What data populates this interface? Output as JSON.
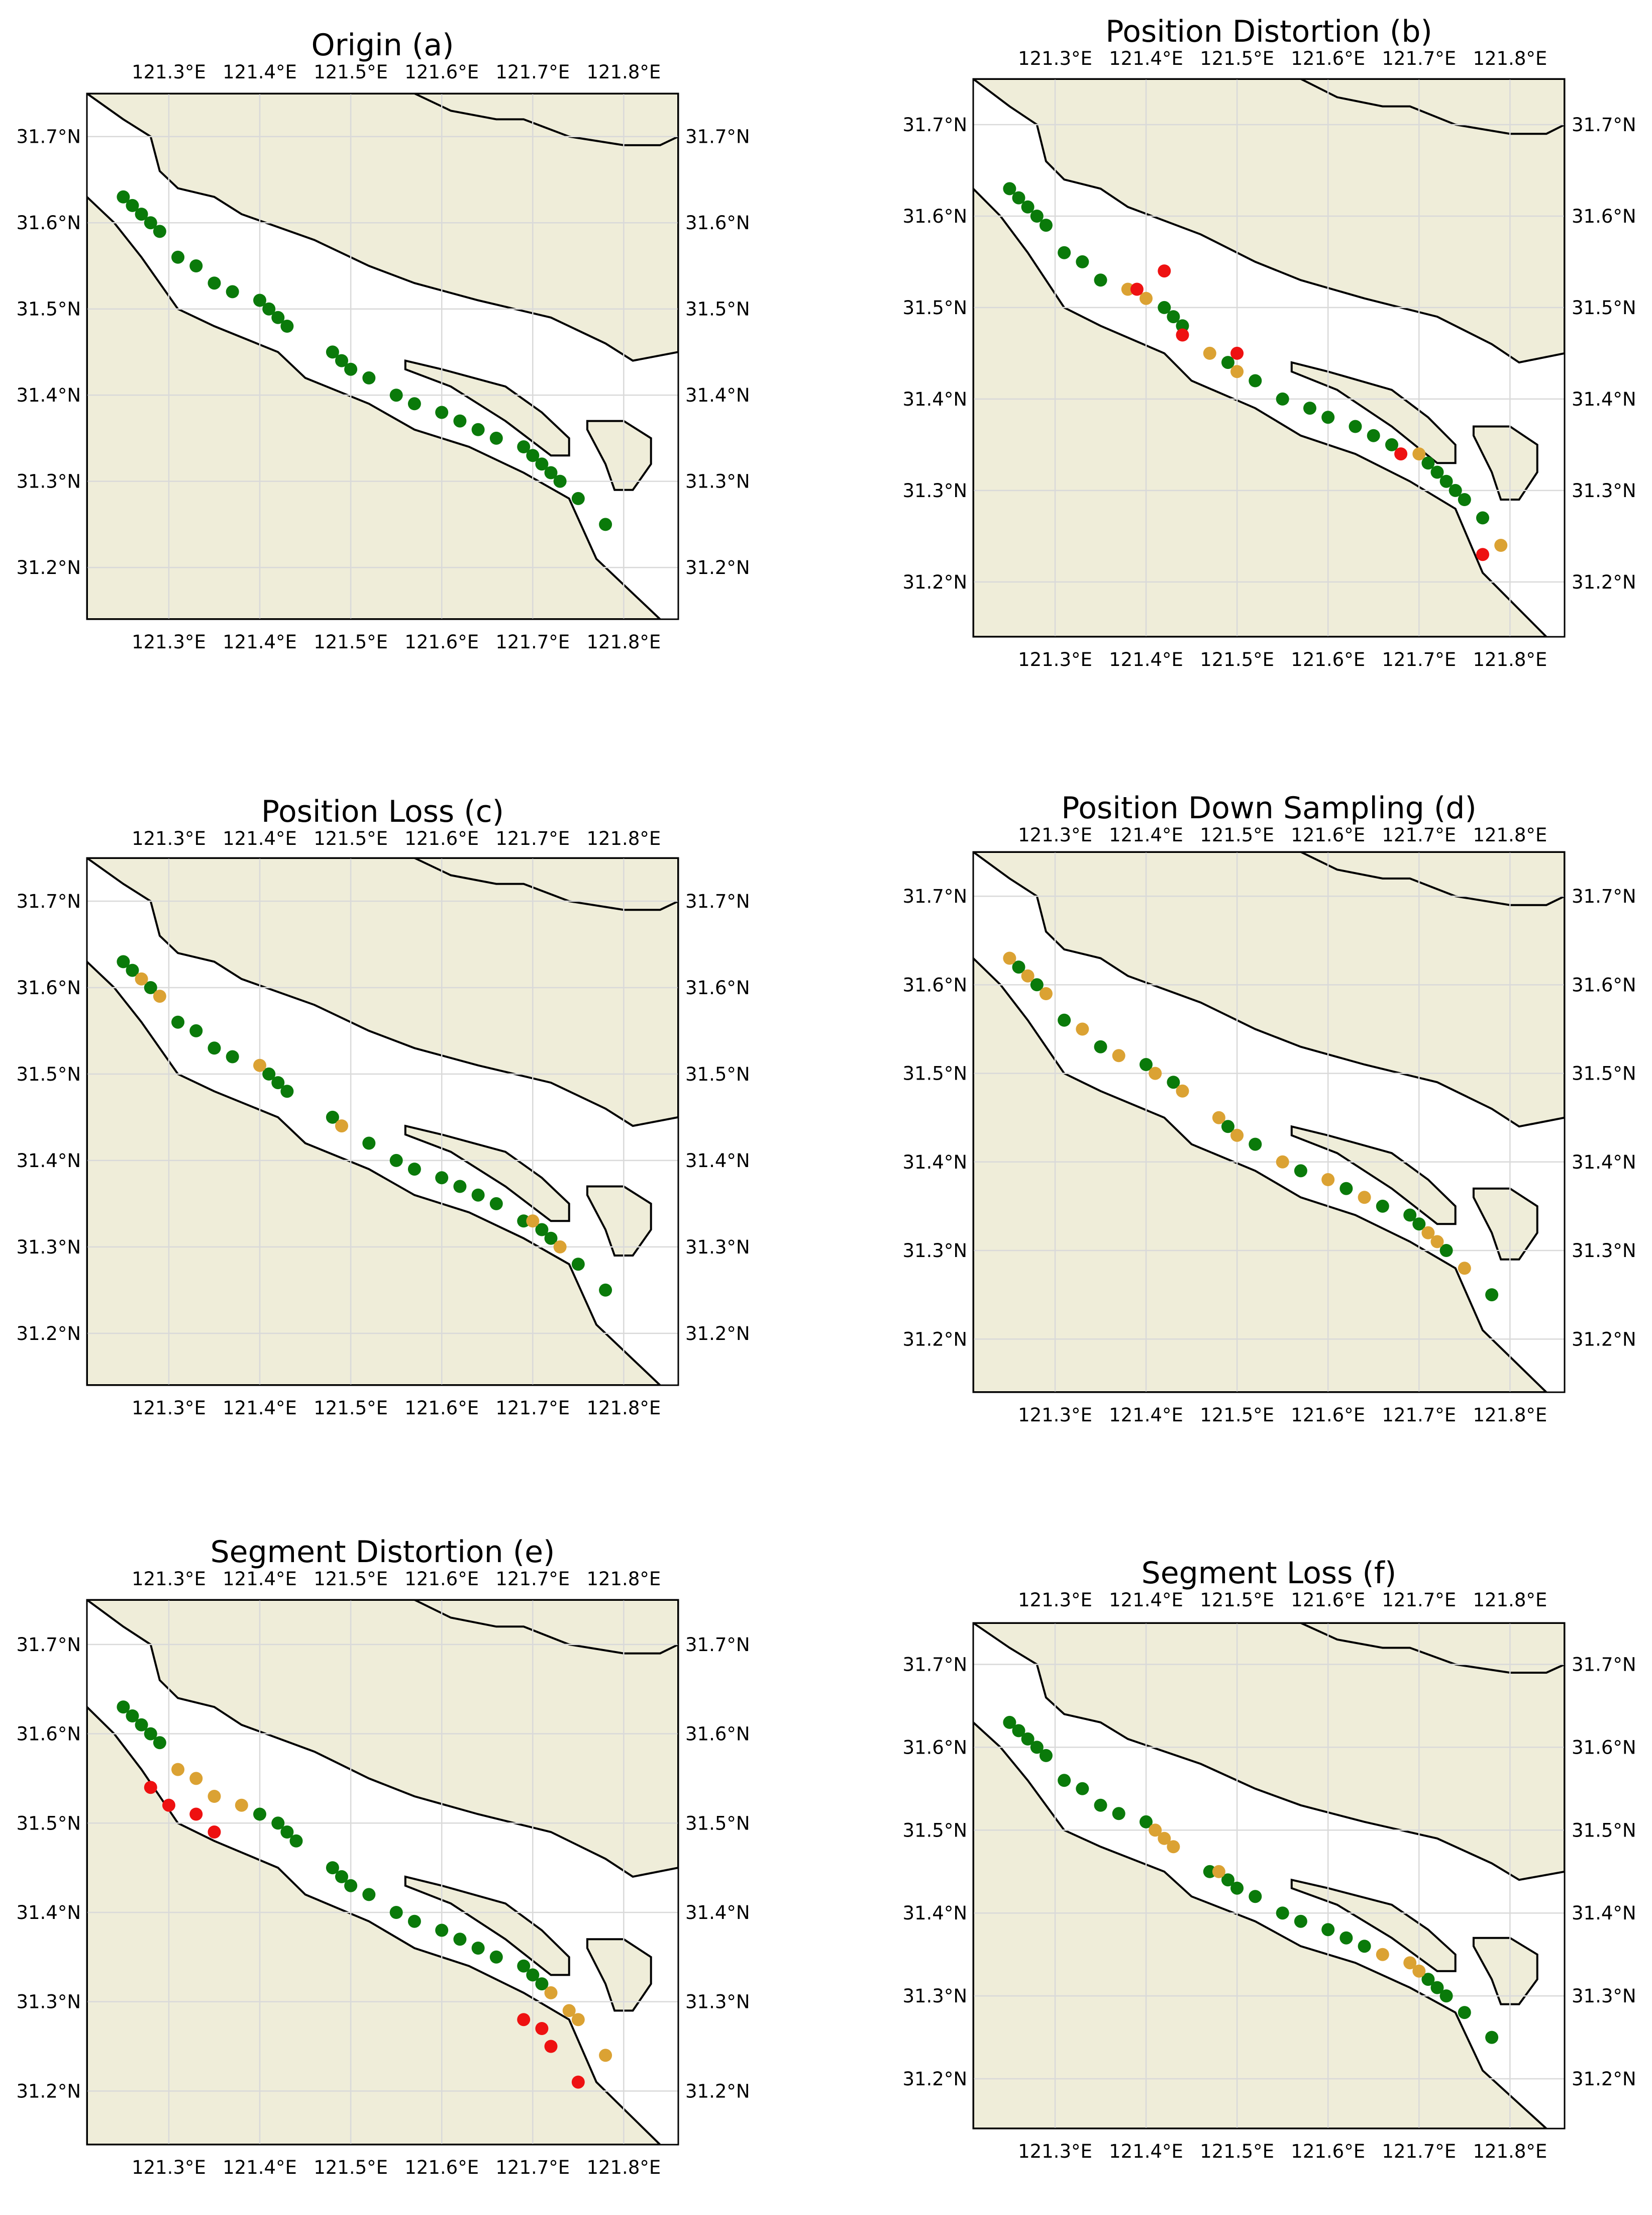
{
  "colors": {
    "land": "#efedd9",
    "water": "#ffffff",
    "coast": "#000000",
    "grid": "#d9d9d9",
    "original_point": "#0a7a0a",
    "modified_point": "#dba233",
    "distorted_point": "#ee1111"
  },
  "panels": [
    {
      "title": "Origin (a)",
      "lon_ticks": [
        "121.3°E",
        "121.4°E",
        "121.5°E",
        "121.6°E",
        "121.7°E",
        "121.8°E"
      ],
      "lat_ticks": [
        "31.7°N",
        "31.6°N",
        "31.5°N",
        "31.4°N",
        "31.3°N",
        "31.2°N"
      ],
      "points": {
        "green": [
          [
            121.25,
            31.63
          ],
          [
            121.26,
            31.62
          ],
          [
            121.27,
            31.61
          ],
          [
            121.28,
            31.6
          ],
          [
            121.29,
            31.59
          ],
          [
            121.31,
            31.56
          ],
          [
            121.33,
            31.55
          ],
          [
            121.35,
            31.53
          ],
          [
            121.37,
            31.52
          ],
          [
            121.4,
            31.51
          ],
          [
            121.41,
            31.5
          ],
          [
            121.42,
            31.49
          ],
          [
            121.43,
            31.48
          ],
          [
            121.48,
            31.45
          ],
          [
            121.49,
            31.44
          ],
          [
            121.5,
            31.43
          ],
          [
            121.52,
            31.42
          ],
          [
            121.55,
            31.4
          ],
          [
            121.57,
            31.39
          ],
          [
            121.6,
            31.38
          ],
          [
            121.62,
            31.37
          ],
          [
            121.64,
            31.36
          ],
          [
            121.66,
            31.35
          ],
          [
            121.69,
            31.34
          ],
          [
            121.7,
            31.33
          ],
          [
            121.71,
            31.32
          ],
          [
            121.72,
            31.31
          ],
          [
            121.73,
            31.3
          ],
          [
            121.75,
            31.28
          ],
          [
            121.78,
            31.25
          ]
        ],
        "orange": [],
        "red": []
      }
    },
    {
      "title": "Position Distortion (b)",
      "lon_ticks": [
        "121.3°E",
        "121.4°E",
        "121.5°E",
        "121.6°E",
        "121.7°E",
        "121.8°E"
      ],
      "lat_ticks": [
        "31.7°N",
        "31.6°N",
        "31.5°N",
        "31.4°N",
        "31.3°N",
        "31.2°N"
      ],
      "points": {
        "green": [
          [
            121.25,
            31.63
          ],
          [
            121.26,
            31.62
          ],
          [
            121.27,
            31.61
          ],
          [
            121.28,
            31.6
          ],
          [
            121.29,
            31.59
          ],
          [
            121.31,
            31.56
          ],
          [
            121.33,
            31.55
          ],
          [
            121.35,
            31.53
          ],
          [
            121.42,
            31.5
          ],
          [
            121.43,
            31.49
          ],
          [
            121.44,
            31.48
          ],
          [
            121.49,
            31.44
          ],
          [
            121.52,
            31.42
          ],
          [
            121.55,
            31.4
          ],
          [
            121.58,
            31.39
          ],
          [
            121.6,
            31.38
          ],
          [
            121.63,
            31.37
          ],
          [
            121.65,
            31.36
          ],
          [
            121.67,
            31.35
          ],
          [
            121.71,
            31.33
          ],
          [
            121.72,
            31.32
          ],
          [
            121.73,
            31.31
          ],
          [
            121.74,
            31.3
          ],
          [
            121.75,
            31.29
          ],
          [
            121.77,
            31.27
          ]
        ],
        "orange": [
          [
            121.38,
            31.52
          ],
          [
            121.4,
            31.51
          ],
          [
            121.47,
            31.45
          ],
          [
            121.5,
            31.43
          ],
          [
            121.7,
            31.34
          ],
          [
            121.79,
            31.24
          ]
        ],
        "red": [
          [
            121.39,
            31.52
          ],
          [
            121.42,
            31.54
          ],
          [
            121.44,
            31.47
          ],
          [
            121.5,
            31.45
          ],
          [
            121.68,
            31.34
          ],
          [
            121.77,
            31.23
          ]
        ]
      }
    },
    {
      "title": "Position Loss (c)",
      "lon_ticks": [
        "121.3°E",
        "121.4°E",
        "121.5°E",
        "121.6°E",
        "121.7°E",
        "121.8°E"
      ],
      "lat_ticks": [
        "31.7°N",
        "31.6°N",
        "31.5°N",
        "31.4°N",
        "31.3°N",
        "31.2°N"
      ],
      "points": {
        "green": [
          [
            121.25,
            31.63
          ],
          [
            121.26,
            31.62
          ],
          [
            121.28,
            31.6
          ],
          [
            121.31,
            31.56
          ],
          [
            121.33,
            31.55
          ],
          [
            121.35,
            31.53
          ],
          [
            121.37,
            31.52
          ],
          [
            121.41,
            31.5
          ],
          [
            121.42,
            31.49
          ],
          [
            121.43,
            31.48
          ],
          [
            121.48,
            31.45
          ],
          [
            121.52,
            31.42
          ],
          [
            121.55,
            31.4
          ],
          [
            121.57,
            31.39
          ],
          [
            121.6,
            31.38
          ],
          [
            121.62,
            31.37
          ],
          [
            121.64,
            31.36
          ],
          [
            121.66,
            31.35
          ],
          [
            121.69,
            31.33
          ],
          [
            121.71,
            31.32
          ],
          [
            121.72,
            31.31
          ],
          [
            121.75,
            31.28
          ],
          [
            121.78,
            31.25
          ]
        ],
        "orange": [
          [
            121.27,
            31.61
          ],
          [
            121.29,
            31.59
          ],
          [
            121.4,
            31.51
          ],
          [
            121.49,
            31.44
          ],
          [
            121.7,
            31.33
          ],
          [
            121.73,
            31.3
          ]
        ],
        "red": []
      }
    },
    {
      "title": "Position Down Sampling (d)",
      "lon_ticks": [
        "121.3°E",
        "121.4°E",
        "121.5°E",
        "121.6°E",
        "121.7°E",
        "121.8°E"
      ],
      "lat_ticks": [
        "31.7°N",
        "31.6°N",
        "31.5°N",
        "31.4°N",
        "31.3°N",
        "31.2°N"
      ],
      "points": {
        "green": [
          [
            121.26,
            31.62
          ],
          [
            121.28,
            31.6
          ],
          [
            121.31,
            31.56
          ],
          [
            121.35,
            31.53
          ],
          [
            121.4,
            31.51
          ],
          [
            121.43,
            31.49
          ],
          [
            121.49,
            31.44
          ],
          [
            121.52,
            31.42
          ],
          [
            121.57,
            31.39
          ],
          [
            121.62,
            31.37
          ],
          [
            121.66,
            31.35
          ],
          [
            121.69,
            31.34
          ],
          [
            121.7,
            31.33
          ],
          [
            121.73,
            31.3
          ],
          [
            121.78,
            31.25
          ]
        ],
        "orange": [
          [
            121.25,
            31.63
          ],
          [
            121.27,
            31.61
          ],
          [
            121.29,
            31.59
          ],
          [
            121.33,
            31.55
          ],
          [
            121.37,
            31.52
          ],
          [
            121.41,
            31.5
          ],
          [
            121.44,
            31.48
          ],
          [
            121.48,
            31.45
          ],
          [
            121.5,
            31.43
          ],
          [
            121.55,
            31.4
          ],
          [
            121.6,
            31.38
          ],
          [
            121.64,
            31.36
          ],
          [
            121.71,
            31.32
          ],
          [
            121.72,
            31.31
          ],
          [
            121.75,
            31.28
          ]
        ],
        "red": []
      }
    },
    {
      "title": "Segment Distortion (e)",
      "lon_ticks": [
        "121.3°E",
        "121.4°E",
        "121.5°E",
        "121.6°E",
        "121.7°E",
        "121.8°E"
      ],
      "lat_ticks": [
        "31.7°N",
        "31.6°N",
        "31.5°N",
        "31.4°N",
        "31.3°N",
        "31.2°N"
      ],
      "points": {
        "green": [
          [
            121.25,
            31.63
          ],
          [
            121.26,
            31.62
          ],
          [
            121.27,
            31.61
          ],
          [
            121.28,
            31.6
          ],
          [
            121.29,
            31.59
          ],
          [
            121.4,
            31.51
          ],
          [
            121.42,
            31.5
          ],
          [
            121.43,
            31.49
          ],
          [
            121.44,
            31.48
          ],
          [
            121.48,
            31.45
          ],
          [
            121.49,
            31.44
          ],
          [
            121.5,
            31.43
          ],
          [
            121.52,
            31.42
          ],
          [
            121.55,
            31.4
          ],
          [
            121.57,
            31.39
          ],
          [
            121.6,
            31.38
          ],
          [
            121.62,
            31.37
          ],
          [
            121.64,
            31.36
          ],
          [
            121.66,
            31.35
          ],
          [
            121.69,
            31.34
          ],
          [
            121.7,
            31.33
          ],
          [
            121.71,
            31.32
          ]
        ],
        "orange": [
          [
            121.31,
            31.56
          ],
          [
            121.33,
            31.55
          ],
          [
            121.35,
            31.53
          ],
          [
            121.38,
            31.52
          ],
          [
            121.72,
            31.31
          ],
          [
            121.74,
            31.29
          ],
          [
            121.75,
            31.28
          ],
          [
            121.78,
            31.24
          ]
        ],
        "red": [
          [
            121.28,
            31.54
          ],
          [
            121.3,
            31.52
          ],
          [
            121.33,
            31.51
          ],
          [
            121.35,
            31.49
          ],
          [
            121.69,
            31.28
          ],
          [
            121.71,
            31.27
          ],
          [
            121.72,
            31.25
          ],
          [
            121.75,
            31.21
          ]
        ]
      }
    },
    {
      "title": "Segment Loss (f)",
      "lon_ticks": [
        "121.3°E",
        "121.4°E",
        "121.5°E",
        "121.6°E",
        "121.7°E",
        "121.8°E"
      ],
      "lat_ticks": [
        "31.7°N",
        "31.6°N",
        "31.5°N",
        "31.4°N",
        "31.3°N",
        "31.2°N"
      ],
      "points": {
        "green": [
          [
            121.25,
            31.63
          ],
          [
            121.26,
            31.62
          ],
          [
            121.27,
            31.61
          ],
          [
            121.28,
            31.6
          ],
          [
            121.29,
            31.59
          ],
          [
            121.31,
            31.56
          ],
          [
            121.33,
            31.55
          ],
          [
            121.35,
            31.53
          ],
          [
            121.37,
            31.52
          ],
          [
            121.4,
            31.51
          ],
          [
            121.47,
            31.45
          ],
          [
            121.49,
            31.44
          ],
          [
            121.5,
            31.43
          ],
          [
            121.52,
            31.42
          ],
          [
            121.55,
            31.4
          ],
          [
            121.57,
            31.39
          ],
          [
            121.6,
            31.38
          ],
          [
            121.62,
            31.37
          ],
          [
            121.64,
            31.36
          ],
          [
            121.71,
            31.32
          ],
          [
            121.72,
            31.31
          ],
          [
            121.73,
            31.3
          ],
          [
            121.75,
            31.28
          ],
          [
            121.78,
            31.25
          ]
        ],
        "orange": [
          [
            121.41,
            31.5
          ],
          [
            121.42,
            31.49
          ],
          [
            121.43,
            31.48
          ],
          [
            121.48,
            31.45
          ],
          [
            121.66,
            31.35
          ],
          [
            121.69,
            31.34
          ],
          [
            121.7,
            31.33
          ]
        ],
        "red": []
      }
    }
  ]
}
